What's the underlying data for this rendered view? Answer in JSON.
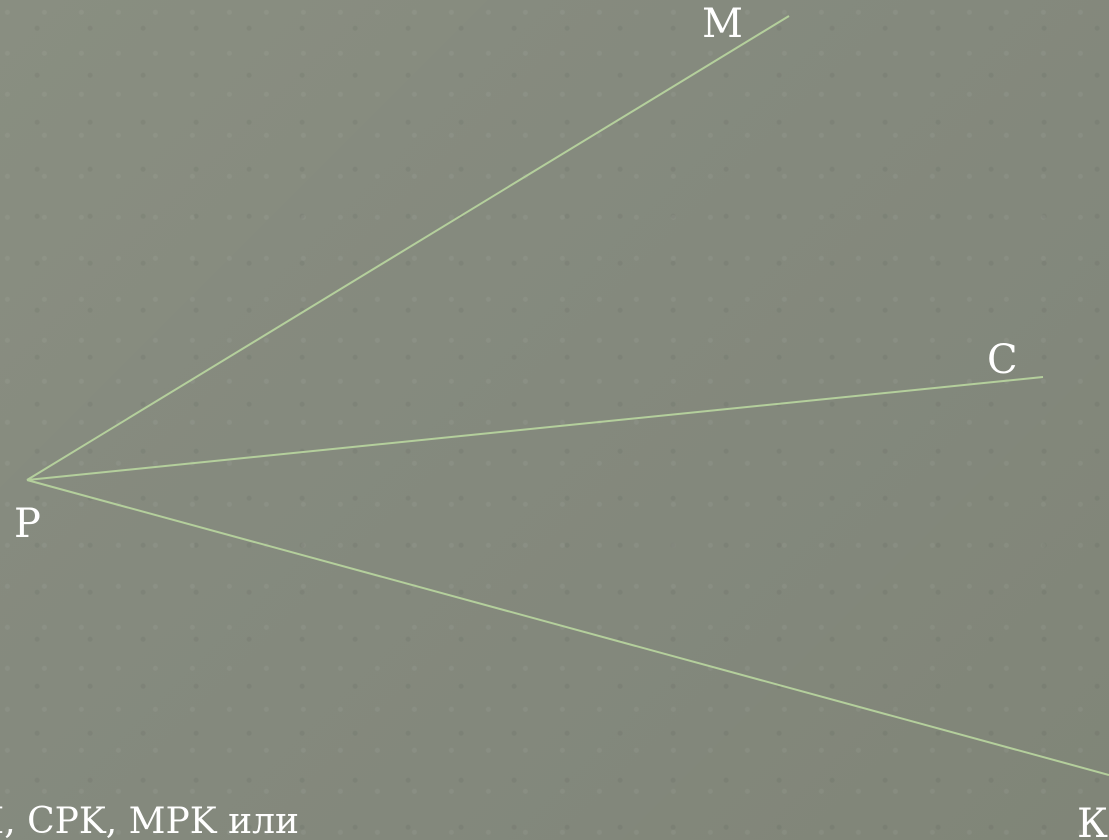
{
  "points": {
    "m": "M",
    "c": "C",
    "p": "P",
    "k": "К"
  },
  "caption": "I, CPK, MPK   или"
}
